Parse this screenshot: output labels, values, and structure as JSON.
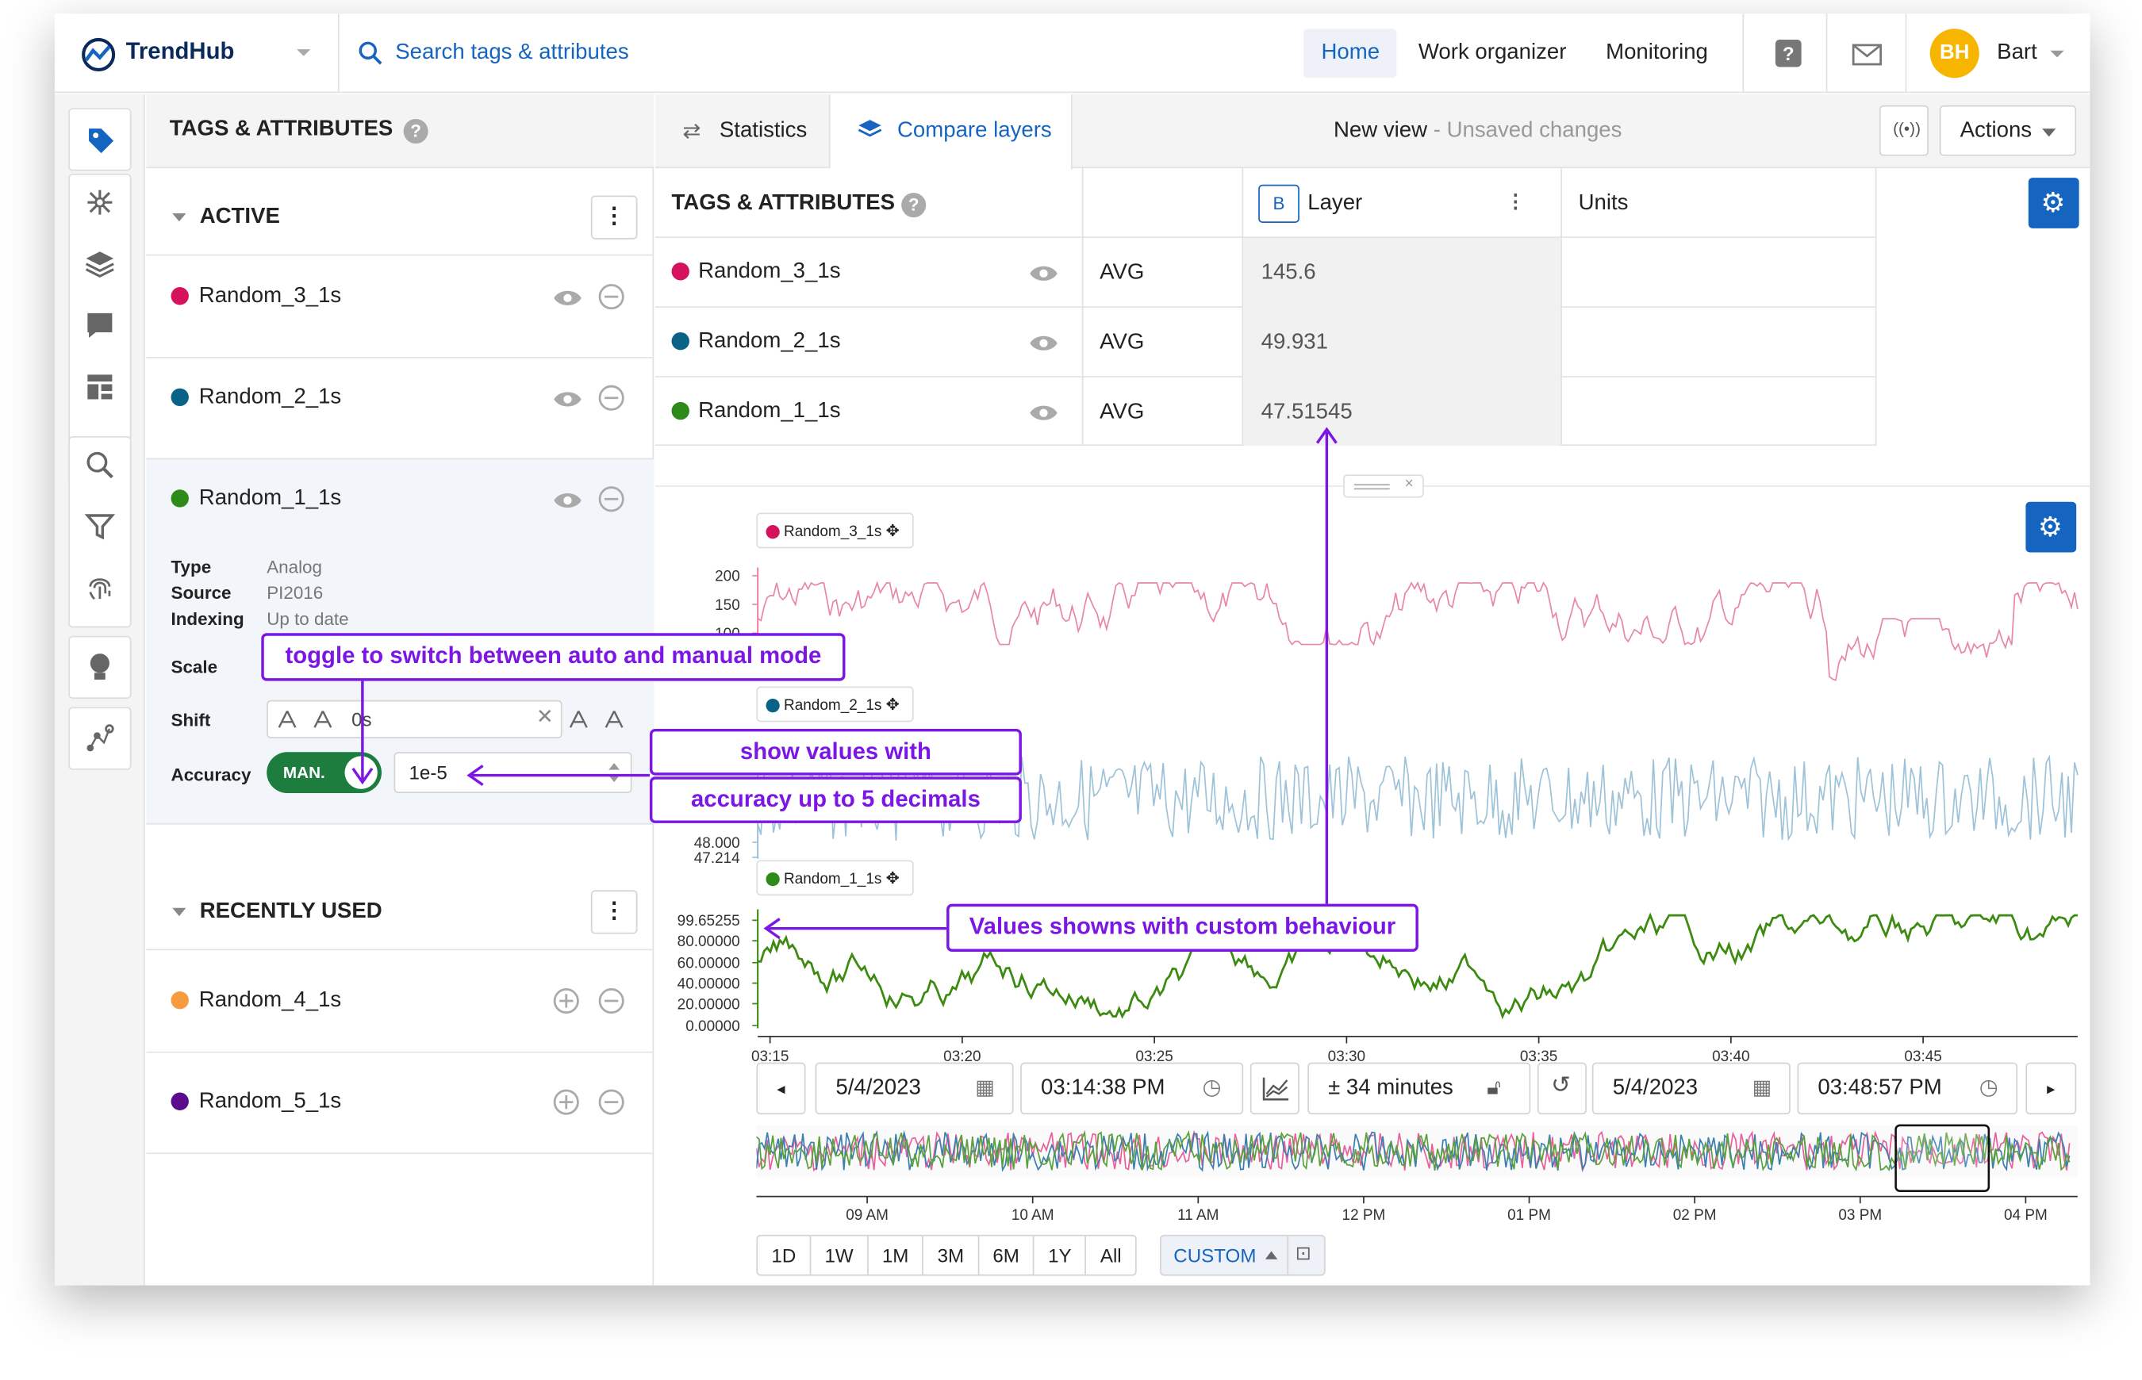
{
  "app": {
    "name": "TrendHub",
    "search_placeholder": "Search tags & attributes",
    "nav": [
      "Home",
      "Work organizer",
      "Monitoring"
    ],
    "avatar_initials": "BH",
    "user_name": "Bart"
  },
  "left": {
    "title": "TAGS & ATTRIBUTES",
    "active_label": "ACTIVE",
    "recent_label": "RECENTLY USED",
    "active_tags": [
      {
        "name": "Random_3_1s",
        "color": "#d6125c"
      },
      {
        "name": "Random_2_1s",
        "color": "#0b6287"
      },
      {
        "name": "Random_1_1s",
        "color": "#2e8b1a"
      }
    ],
    "details": {
      "type_label": "Type",
      "type": "Analog",
      "source_label": "Source",
      "source": "PI2016",
      "indexing_label": "Indexing",
      "indexing": "Up to date",
      "scale_label": "Scale",
      "shift_label": "Shift",
      "shift_value": "0s",
      "accuracy_label": "Accuracy",
      "accuracy_mode": "MAN.",
      "accuracy_value": "1e-5"
    },
    "recent_tags": [
      {
        "name": "Random_4_1s",
        "color": "#f89a3e"
      },
      {
        "name": "Random_5_1s",
        "color": "#5c0a8e"
      }
    ]
  },
  "tabs": {
    "statistics": "Statistics",
    "compare": "Compare layers",
    "view_name": "New view",
    "unsaved": "Unsaved changes",
    "actions": "Actions"
  },
  "table": {
    "col_tags": "TAGS & ATTRIBUTES",
    "layer_badge": "B",
    "col_layer": "Layer",
    "col_units": "Units",
    "rows": [
      {
        "name": "Random_3_1s",
        "agg": "AVG",
        "value": "145.6"
      },
      {
        "name": "Random_2_1s",
        "agg": "AVG",
        "value": "49.931"
      },
      {
        "name": "Random_1_1s",
        "agg": "AVG",
        "value": "47.51545"
      }
    ]
  },
  "chart_data": {
    "type": "line",
    "x_ticks": [
      "03:15",
      "03:20",
      "03:25",
      "03:30",
      "03:35",
      "03:40",
      "03:45"
    ],
    "series": [
      {
        "name": "Random_3_1s",
        "color": "#e887a9",
        "y_ticks": [
          "200",
          "150",
          "100"
        ]
      },
      {
        "name": "Random_2_1s",
        "color": "#9ec3d9",
        "y_ticks": [
          "48.000",
          "47.214"
        ]
      },
      {
        "name": "Random_1_1s",
        "color": "#3c8a10",
        "y_ticks": [
          "99.65255",
          "80.00000",
          "60.00000",
          "40.00000",
          "20.00000",
          "0.00000"
        ]
      }
    ],
    "overview_ticks": [
      "09 AM",
      "10 AM",
      "11 AM",
      "12 PM",
      "01 PM",
      "02 PM",
      "03 PM",
      "04 PM"
    ]
  },
  "range": {
    "start_date": "5/4/2023",
    "start_time": "03:14:38 PM",
    "duration": "± 34 minutes",
    "end_date": "5/4/2023",
    "end_time": "03:48:57 PM"
  },
  "presets": [
    "1D",
    "1W",
    "1M",
    "3M",
    "6M",
    "1Y",
    "All"
  ],
  "custom": "CUSTOM",
  "annotations": {
    "toggle": "toggle to switch between auto and manual mode",
    "show1": "show values with",
    "show2": "accuracy up to 5 decimals",
    "custom": "Values showns with custom behaviour"
  }
}
